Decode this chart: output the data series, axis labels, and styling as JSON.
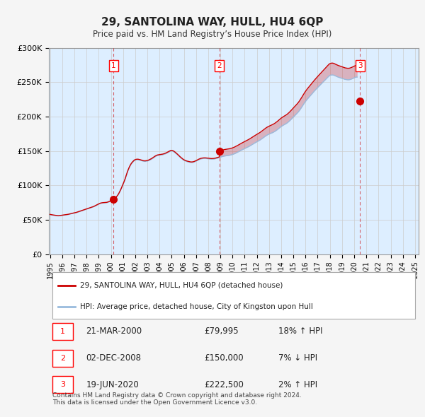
{
  "title": "29, SANTOLINA WAY, HULL, HU4 6QP",
  "subtitle": "Price paid vs. HM Land Registry’s House Price Index (HPI)",
  "ylim": [
    0,
    300000
  ],
  "yticks": [
    0,
    50000,
    100000,
    150000,
    200000,
    250000,
    300000
  ],
  "ytick_labels": [
    "£0",
    "£50K",
    "£100K",
    "£150K",
    "£200K",
    "£250K",
    "£300K"
  ],
  "sale_color": "#cc0000",
  "hpi_color": "#99bbdd",
  "chart_bg_color": "#ddeeff",
  "fig_bg_color": "#f5f5f5",
  "grid_color": "#cccccc",
  "sale_dates_numeric": [
    2000.21,
    2008.92,
    2020.47
  ],
  "sale_prices": [
    79995,
    150000,
    222500
  ],
  "sale_labels": [
    "1",
    "2",
    "3"
  ],
  "legend_label_sale": "29, SANTOLINA WAY, HULL, HU4 6QP (detached house)",
  "legend_label_hpi": "HPI: Average price, detached house, City of Kingston upon Hull",
  "table_rows": [
    [
      "1",
      "21-MAR-2000",
      "£79,995",
      "18% ↑ HPI"
    ],
    [
      "2",
      "02-DEC-2008",
      "£150,000",
      "7% ↓ HPI"
    ],
    [
      "3",
      "19-JUN-2020",
      "£222,500",
      "2% ↑ HPI"
    ]
  ],
  "footnote": "Contains HM Land Registry data © Crown copyright and database right 2024.\nThis data is licensed under the Open Government Licence v3.0.",
  "hpi_monthly": [
    57500,
    57200,
    56900,
    56700,
    56500,
    56300,
    56100,
    55900,
    55700,
    55800,
    56000,
    56200,
    56400,
    56600,
    56800,
    57000,
    57200,
    57400,
    57700,
    58100,
    58500,
    58900,
    59200,
    59500,
    59800,
    60100,
    60500,
    61000,
    61500,
    62000,
    62500,
    63000,
    63500,
    64000,
    64500,
    65000,
    65500,
    66000,
    66500,
    67000,
    67500,
    68000,
    68500,
    69000,
    69800,
    70500,
    71200,
    72000,
    72800,
    73500,
    74000,
    74300,
    74500,
    74600,
    74700,
    74800,
    75000,
    75500,
    76000,
    76800,
    77500,
    78200,
    79000,
    80000,
    81000,
    82500,
    84000,
    86000,
    88500,
    91500,
    94500,
    98000,
    101500,
    105000,
    109000,
    113500,
    118000,
    122000,
    125500,
    128500,
    131000,
    133000,
    134500,
    136000,
    136800,
    137200,
    137400,
    137300,
    137000,
    136600,
    136100,
    135600,
    135200,
    135000,
    135000,
    135200,
    135500,
    136000,
    136700,
    137400,
    138200,
    139200,
    140200,
    141200,
    142200,
    143000,
    143500,
    143800,
    144000,
    144200,
    144400,
    144700,
    145100,
    145600,
    146200,
    146900,
    147700,
    148500,
    149400,
    150000,
    150200,
    149800,
    149000,
    148000,
    146800,
    145500,
    144200,
    142800,
    141300,
    140000,
    138800,
    137600,
    136600,
    135800,
    135200,
    134700,
    134300,
    133900,
    133600,
    133400,
    133400,
    133600,
    134000,
    134600,
    135300,
    136100,
    136900,
    137600,
    138200,
    138700,
    139000,
    139200,
    139300,
    139300,
    139200,
    139000,
    138800,
    138600,
    138400,
    138300,
    138300,
    138400,
    138600,
    138900,
    139300,
    139700,
    140200,
    140700,
    141200,
    141700,
    142100,
    142500,
    142800,
    143000,
    143200,
    143400,
    143600,
    143900,
    144200,
    144600,
    145100,
    145600,
    146200,
    146900,
    147600,
    148400,
    149200,
    150000,
    150800,
    151600,
    152300,
    153000,
    153700,
    154400,
    155100,
    155800,
    156600,
    157400,
    158300,
    159200,
    160100,
    161000,
    161900,
    162700,
    163500,
    164300,
    165100,
    166000,
    167000,
    168000,
    169100,
    170200,
    171300,
    172300,
    173200,
    174000,
    174700,
    175300,
    175900,
    176500,
    177200,
    178000,
    178900,
    179900,
    181000,
    182200,
    183400,
    184600,
    185700,
    186700,
    187600,
    188400,
    189200,
    190100,
    191100,
    192300,
    193600,
    195000,
    196500,
    198000,
    199500,
    201000,
    202500,
    204000,
    205500,
    207200,
    209100,
    211200,
    213400,
    215700,
    218000,
    220200,
    222300,
    224200,
    226000,
    227700,
    229300,
    231000,
    232700,
    234400,
    236100,
    237800,
    239400,
    241000,
    242500,
    244000,
    245500,
    247000,
    248500,
    250000,
    251500,
    253000,
    254500,
    256000,
    257500,
    259000,
    260000,
    260500,
    260800,
    260700,
    260300,
    259700,
    259000,
    258300,
    257700,
    257200,
    256700,
    256200,
    255700,
    255200,
    254700,
    254300,
    254000,
    253800,
    253700,
    253800,
    254100,
    254600,
    255200,
    255900,
    256600,
    257200,
    257600,
    257700
  ]
}
